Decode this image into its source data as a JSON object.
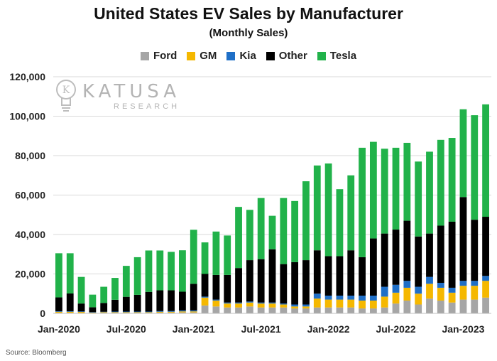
{
  "title": "United States EV Sales by Manufacturer",
  "subtitle": "(Monthly Sales)",
  "source": "Source: Bloomberg",
  "logo": {
    "name": "KATUSA",
    "sub": "RESEARCH"
  },
  "colors": {
    "Ford": "#a6a6a6",
    "GM": "#f5b800",
    "Kia": "#1f6fc7",
    "Other": "#000000",
    "Tesla": "#21b24a"
  },
  "chart_data": {
    "type": "bar",
    "stacked": true,
    "title": "United States EV Sales by Manufacturer",
    "subtitle": "(Monthly Sales)",
    "legend_position": "top",
    "ylim": [
      0,
      120000
    ],
    "yticks": [
      0,
      20000,
      40000,
      60000,
      80000,
      100000,
      120000
    ],
    "ytick_labels": [
      "0",
      "20,000",
      "40,000",
      "60,000",
      "80,000",
      "100,000",
      "120,000"
    ],
    "xtick_labels": [
      "Jan-2020",
      "Jul-2020",
      "Jan-2021",
      "Jul-2021",
      "Jan-2022",
      "Jul-2022",
      "Jan-2023"
    ],
    "xtick_indices": [
      0,
      6,
      12,
      18,
      24,
      30,
      36
    ],
    "categories": [
      "Jan-2020",
      "Feb-2020",
      "Mar-2020",
      "Apr-2020",
      "May-2020",
      "Jun-2020",
      "Jul-2020",
      "Aug-2020",
      "Sep-2020",
      "Oct-2020",
      "Nov-2020",
      "Dec-2020",
      "Jan-2021",
      "Feb-2021",
      "Mar-2021",
      "Apr-2021",
      "May-2021",
      "Jun-2021",
      "Jul-2021",
      "Aug-2021",
      "Sep-2021",
      "Oct-2021",
      "Nov-2021",
      "Dec-2021",
      "Jan-2022",
      "Feb-2022",
      "Mar-2022",
      "Apr-2022",
      "May-2022",
      "Jun-2022",
      "Jul-2022",
      "Aug-2022",
      "Sep-2022",
      "Oct-2022",
      "Nov-2022",
      "Dec-2022",
      "Jan-2023",
      "Feb-2023",
      "Mar-2023"
    ],
    "series": [
      {
        "name": "Ford",
        "values": [
          300,
          300,
          200,
          200,
          300,
          300,
          300,
          300,
          300,
          400,
          400,
          500,
          500,
          4000,
          3500,
          3000,
          3000,
          3500,
          3000,
          3000,
          3000,
          2500,
          2500,
          3000,
          3000,
          3000,
          3000,
          2500,
          2500,
          3000,
          5000,
          6500,
          4500,
          7500,
          6500,
          5500,
          7000,
          7000,
          8000
        ]
      },
      {
        "name": "GM",
        "values": [
          500,
          500,
          500,
          200,
          300,
          300,
          300,
          300,
          300,
          400,
          400,
          500,
          500,
          4000,
          3000,
          2000,
          2000,
          2000,
          2000,
          2000,
          1500,
          1000,
          1000,
          4500,
          4000,
          4000,
          4000,
          4000,
          4000,
          5500,
          5500,
          6500,
          5500,
          7500,
          6500,
          5000,
          7000,
          7000,
          8500
        ]
      },
      {
        "name": "Kia",
        "values": [
          300,
          300,
          300,
          200,
          200,
          300,
          300,
          300,
          300,
          400,
          400,
          500,
          500,
          500,
          500,
          500,
          500,
          500,
          500,
          500,
          500,
          1000,
          1000,
          2500,
          2000,
          2000,
          2000,
          2500,
          2500,
          5000,
          4000,
          3500,
          3500,
          3500,
          2500,
          2500,
          2500,
          2500,
          2500
        ]
      },
      {
        "name": "Other",
        "values": [
          7000,
          9000,
          4000,
          2500,
          4500,
          6000,
          7500,
          8500,
          10000,
          10500,
          10500,
          9500,
          13500,
          11500,
          12500,
          14000,
          17500,
          21000,
          22000,
          27000,
          20000,
          21500,
          22500,
          22000,
          20000,
          20000,
          23000,
          19500,
          29000,
          27000,
          28000,
          30500,
          25500,
          22000,
          29000,
          33500,
          42500,
          31000,
          30000
        ]
      },
      {
        "name": "Tesla",
        "values": [
          22400,
          20400,
          13500,
          6400,
          8200,
          11100,
          15700,
          19100,
          21000,
          20200,
          19500,
          21000,
          27400,
          16000,
          22000,
          20000,
          31000,
          25500,
          31000,
          17000,
          33500,
          31000,
          40000,
          43000,
          47000,
          34000,
          38000,
          55500,
          49000,
          43000,
          41500,
          39500,
          38000,
          41500,
          43500,
          42500,
          44500,
          53000,
          57000
        ]
      }
    ]
  }
}
